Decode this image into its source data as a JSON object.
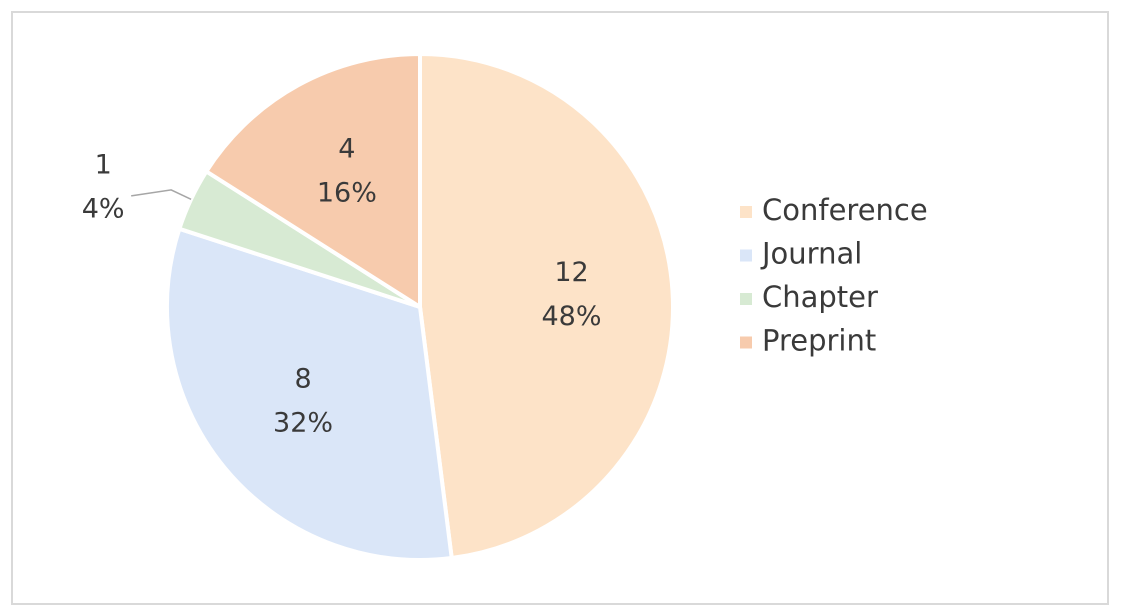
{
  "chart_data": {
    "type": "pie",
    "categories": [
      "Conference",
      "Journal",
      "Chapter",
      "Preprint"
    ],
    "values": [
      12,
      8,
      1,
      4
    ],
    "percent_labels": [
      "48%",
      "32%",
      "4%",
      "16%"
    ],
    "colors": [
      "#fde3c8",
      "#dae6f8",
      "#d7ead3",
      "#f7cbad"
    ],
    "legend": "right"
  }
}
